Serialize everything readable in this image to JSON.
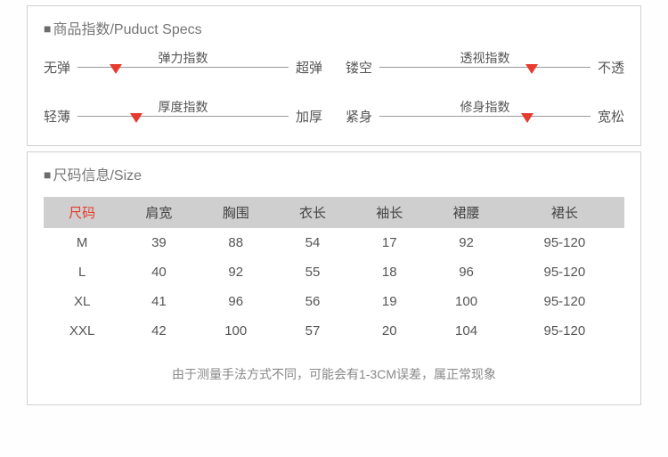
{
  "specs": {
    "title": "商品指数/Puduct Specs",
    "rows": [
      [
        {
          "left": "无弹",
          "name": "弹力指数",
          "right": "超弹",
          "pos": 18
        },
        {
          "left": "镂空",
          "name": "透视指数",
          "right": "不透",
          "pos": 72
        }
      ],
      [
        {
          "left": "轻薄",
          "name": "厚度指数",
          "right": "加厚",
          "pos": 28
        },
        {
          "left": "紧身",
          "name": "修身指数",
          "right": "宽松",
          "pos": 70
        }
      ]
    ],
    "marker_color": "#e63b2e"
  },
  "size": {
    "title": "尺码信息/Size",
    "columns": [
      "尺码",
      "肩宽",
      "胸围",
      "衣长",
      "袖长",
      "裙腰",
      "裙长"
    ],
    "rows": [
      [
        "M",
        "39",
        "88",
        "54",
        "17",
        "92",
        "95-120"
      ],
      [
        "L",
        "40",
        "92",
        "55",
        "18",
        "96",
        "95-120"
      ],
      [
        "XL",
        "41",
        "96",
        "56",
        "19",
        "100",
        "95-120"
      ],
      [
        "XXL",
        "42",
        "100",
        "57",
        "20",
        "104",
        "95-120"
      ]
    ],
    "note": "由于测量手法方式不同，可能会有1-3CM误差，属正常现象"
  }
}
